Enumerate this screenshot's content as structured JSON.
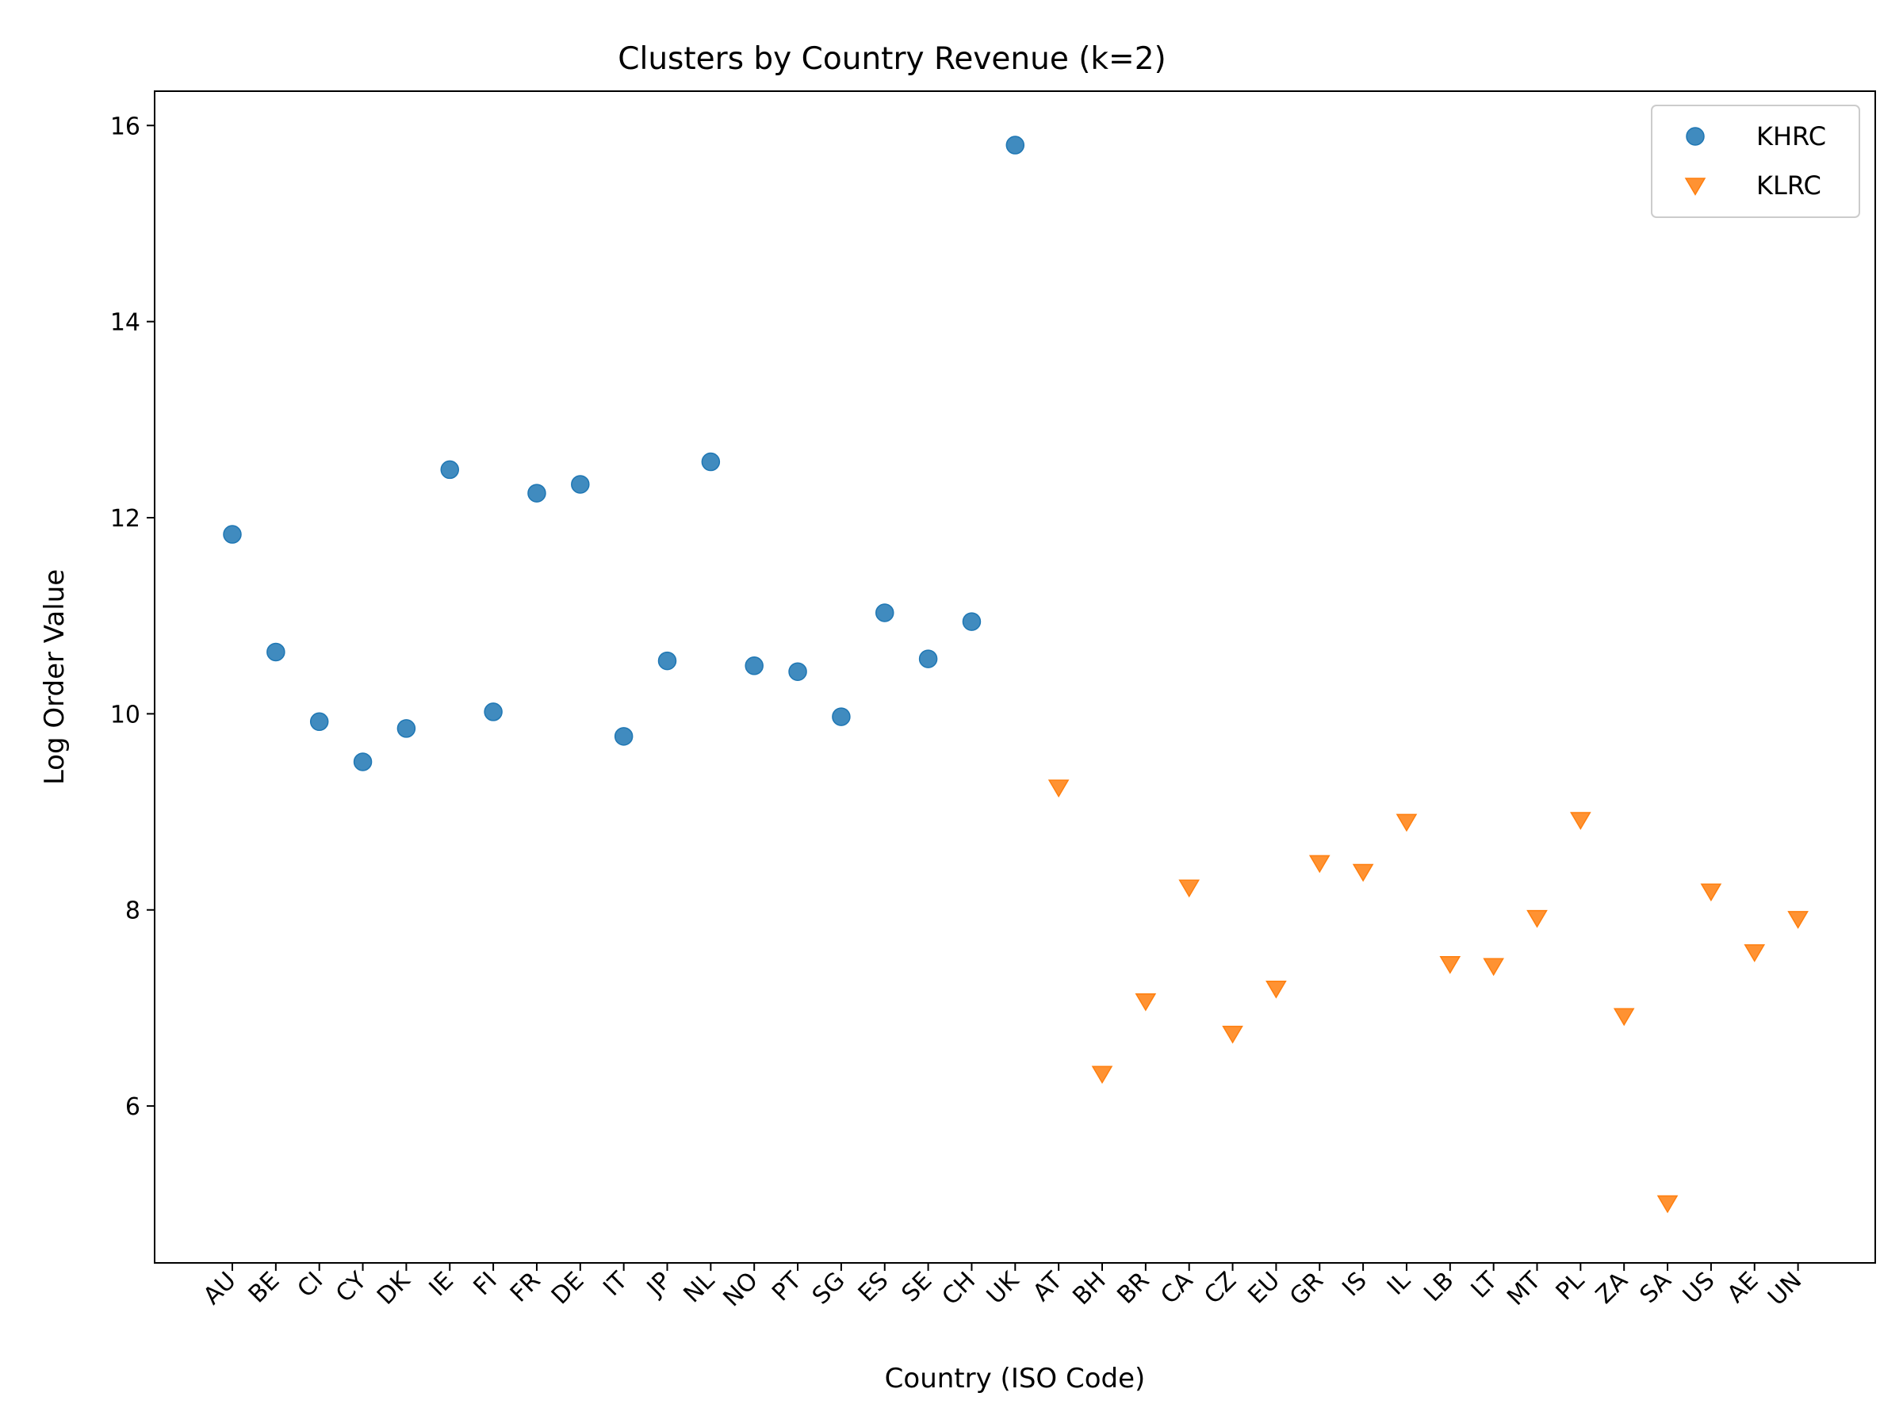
{
  "chart_data": {
    "type": "scatter",
    "title": "Clusters by Country Revenue (k=2)",
    "xlabel": "Country (ISO Code)",
    "ylabel": "Log Order Value",
    "categories": [
      "AU",
      "BE",
      "CI",
      "CY",
      "DK",
      "IE",
      "FI",
      "FR",
      "DE",
      "IT",
      "JP",
      "NL",
      "NO",
      "PT",
      "SG",
      "ES",
      "SE",
      "CH",
      "UK",
      "AT",
      "BH",
      "BR",
      "CA",
      "CZ",
      "EU",
      "GR",
      "IS",
      "IL",
      "LB",
      "LT",
      "MT",
      "PL",
      "ZA",
      "SA",
      "US",
      "AE",
      "UN"
    ],
    "ylim": [
      4.4,
      16.35
    ],
    "yticks": [
      6,
      8,
      10,
      12,
      14,
      16
    ],
    "legend_position": "top-right",
    "grid": false,
    "series": [
      {
        "name": "KHRC",
        "marker": "circle",
        "color": "#1f77b4",
        "points": [
          {
            "x": "AU",
            "y": 11.83
          },
          {
            "x": "BE",
            "y": 10.63
          },
          {
            "x": "CI",
            "y": 9.92
          },
          {
            "x": "CY",
            "y": 9.51
          },
          {
            "x": "DK",
            "y": 9.85
          },
          {
            "x": "IE",
            "y": 12.49
          },
          {
            "x": "FI",
            "y": 10.02
          },
          {
            "x": "FR",
            "y": 12.25
          },
          {
            "x": "DE",
            "y": 12.34
          },
          {
            "x": "IT",
            "y": 9.77
          },
          {
            "x": "JP",
            "y": 10.54
          },
          {
            "x": "NL",
            "y": 12.57
          },
          {
            "x": "NO",
            "y": 10.49
          },
          {
            "x": "PT",
            "y": 10.43
          },
          {
            "x": "SG",
            "y": 9.97
          },
          {
            "x": "ES",
            "y": 11.03
          },
          {
            "x": "SE",
            "y": 10.56
          },
          {
            "x": "CH",
            "y": 10.94
          },
          {
            "x": "UK",
            "y": 15.8
          }
        ]
      },
      {
        "name": "KLRC",
        "marker": "triangle-down",
        "color": "#ff7f0e",
        "points": [
          {
            "x": "AT",
            "y": 9.25
          },
          {
            "x": "BH",
            "y": 6.33
          },
          {
            "x": "BR",
            "y": 7.07
          },
          {
            "x": "CA",
            "y": 8.23
          },
          {
            "x": "CZ",
            "y": 6.74
          },
          {
            "x": "EU",
            "y": 7.2
          },
          {
            "x": "GR",
            "y": 8.48
          },
          {
            "x": "IS",
            "y": 8.39
          },
          {
            "x": "IL",
            "y": 8.9
          },
          {
            "x": "LB",
            "y": 7.45
          },
          {
            "x": "LT",
            "y": 7.43
          },
          {
            "x": "MT",
            "y": 7.92
          },
          {
            "x": "PL",
            "y": 8.92
          },
          {
            "x": "ZA",
            "y": 6.92
          },
          {
            "x": "SA",
            "y": 5.01
          },
          {
            "x": "US",
            "y": 8.19
          },
          {
            "x": "AE",
            "y": 7.57
          },
          {
            "x": "UN",
            "y": 7.91
          }
        ]
      }
    ]
  }
}
